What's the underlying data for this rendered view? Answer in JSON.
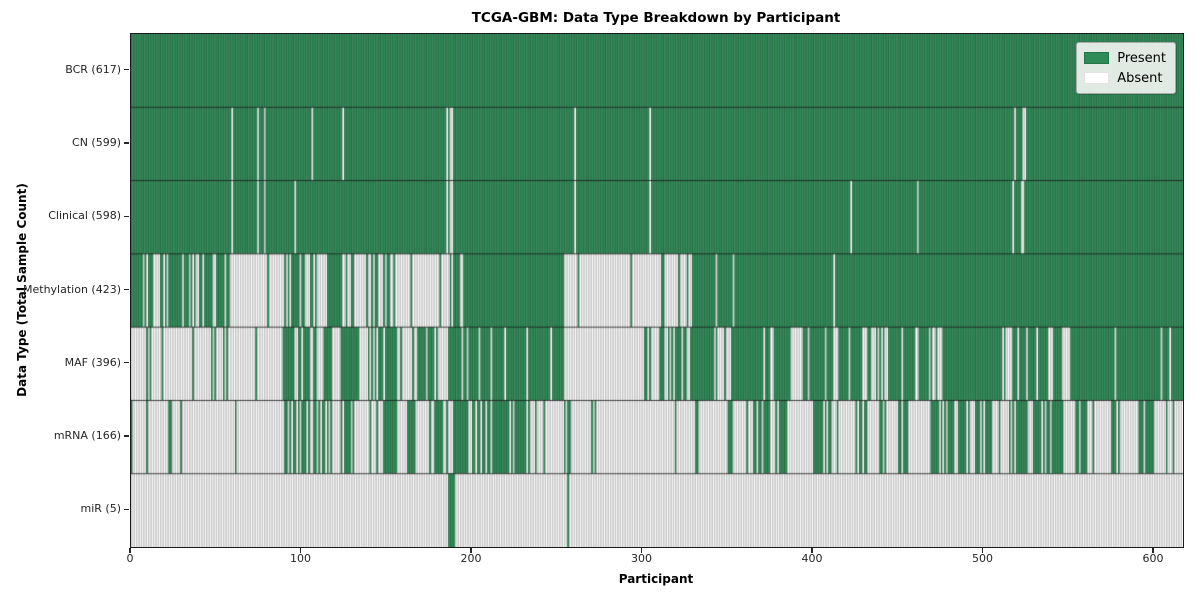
{
  "title": "TCGA-GBM: Data Type Breakdown by Participant",
  "axes": {
    "x_label": "Participant",
    "y_label": "Data Type (Total Sample Count)",
    "x_ticks": [
      0,
      100,
      200,
      300,
      400,
      500,
      600
    ]
  },
  "legend": {
    "present_label": "Present",
    "absent_label": "Absent"
  },
  "colors": {
    "present": "#2e8b57",
    "present_edge": "#1d5c39",
    "absent": "#ffffff",
    "absent_edge": "#9c9c9c",
    "row_divider": "rgba(15,15,15,0.85)",
    "tick": "#262626"
  },
  "chart_data": {
    "type": "heatmap",
    "title": "TCGA-GBM: Data Type Breakdown by Participant",
    "xlabel": "Participant",
    "ylabel": "Data Type (Total Sample Count)",
    "x_range": [
      0,
      617
    ],
    "x_ticks": [
      0,
      100,
      200,
      300,
      400,
      500,
      600
    ],
    "legend": [
      "Present",
      "Absent"
    ],
    "legend_position": "upper right",
    "cell_states": {
      "present": 1,
      "absent": 0,
      "note": "segments are [startParticipant, endParticipant, fractionPresent]; fraction 1=solid present, 0=solid absent, intermediate=interleaved present/absent stripes as seen in figure"
    },
    "rows": [
      {
        "name": "BCR",
        "label": "BCR (617)",
        "total": 617,
        "segments": [
          [
            0,
            617,
            1
          ]
        ]
      },
      {
        "name": "CN",
        "label": "CN (599)",
        "total": 599,
        "segments": [
          [
            0,
            59,
            1
          ],
          [
            59,
            60,
            0
          ],
          [
            60,
            74,
            1
          ],
          [
            74,
            75,
            0
          ],
          [
            75,
            78,
            1
          ],
          [
            78,
            79,
            0
          ],
          [
            79,
            106,
            1
          ],
          [
            106,
            107,
            0
          ],
          [
            107,
            124,
            1
          ],
          [
            124,
            125,
            0
          ],
          [
            125,
            185,
            1
          ],
          [
            185,
            186,
            0
          ],
          [
            186,
            187,
            1
          ],
          [
            187,
            189,
            0
          ],
          [
            189,
            260,
            1
          ],
          [
            260,
            261,
            0
          ],
          [
            261,
            304,
            1
          ],
          [
            304,
            305,
            0
          ],
          [
            305,
            518,
            1
          ],
          [
            518,
            519,
            0
          ],
          [
            519,
            523,
            1
          ],
          [
            523,
            525,
            0
          ],
          [
            525,
            617,
            1
          ]
        ]
      },
      {
        "name": "Clinical",
        "label": "Clinical (598)",
        "total": 598,
        "segments": [
          [
            0,
            59,
            1
          ],
          [
            59,
            60,
            0
          ],
          [
            60,
            74,
            1
          ],
          [
            74,
            75,
            0
          ],
          [
            75,
            78,
            1
          ],
          [
            78,
            79,
            0
          ],
          [
            79,
            96,
            1
          ],
          [
            96,
            97,
            0
          ],
          [
            97,
            185,
            1
          ],
          [
            185,
            186,
            0
          ],
          [
            186,
            187,
            1
          ],
          [
            187,
            189,
            0
          ],
          [
            189,
            260,
            1
          ],
          [
            260,
            261,
            0
          ],
          [
            261,
            304,
            1
          ],
          [
            304,
            305,
            0
          ],
          [
            305,
            422,
            1
          ],
          [
            422,
            423,
            0
          ],
          [
            423,
            461,
            1
          ],
          [
            461,
            462,
            0
          ],
          [
            462,
            517,
            1
          ],
          [
            517,
            518,
            0
          ],
          [
            518,
            522,
            1
          ],
          [
            522,
            524,
            0
          ],
          [
            524,
            617,
            1
          ]
        ]
      },
      {
        "name": "Methylation",
        "label": "Methylation (423)",
        "total": 423,
        "segments": [
          [
            0,
            7,
            1
          ],
          [
            7,
            22,
            0.5
          ],
          [
            22,
            31,
            0.9
          ],
          [
            31,
            45,
            0.4
          ],
          [
            45,
            59,
            0.75
          ],
          [
            59,
            89,
            0.15
          ],
          [
            89,
            102,
            0.7
          ],
          [
            102,
            115,
            0.3
          ],
          [
            115,
            125,
            0.9
          ],
          [
            125,
            158,
            0.35
          ],
          [
            158,
            186,
            0.15
          ],
          [
            186,
            197,
            0.5
          ],
          [
            197,
            254,
            1
          ],
          [
            254,
            311,
            0.04
          ],
          [
            311,
            330,
            0.2
          ],
          [
            330,
            412,
            0.98
          ],
          [
            412,
            413,
            0
          ],
          [
            413,
            617,
            0.99
          ]
        ]
      },
      {
        "name": "MAF",
        "label": "MAF (396)",
        "total": 396,
        "segments": [
          [
            0,
            88,
            0.1
          ],
          [
            88,
            104,
            0.6
          ],
          [
            104,
            115,
            0.4
          ],
          [
            115,
            133,
            0.75
          ],
          [
            133,
            146,
            0.5
          ],
          [
            146,
            156,
            0.95
          ],
          [
            156,
            168,
            0.25
          ],
          [
            168,
            180,
            0.85
          ],
          [
            180,
            186,
            0.1
          ],
          [
            186,
            215,
            0.8
          ],
          [
            215,
            254,
            0.95
          ],
          [
            254,
            300,
            0.05
          ],
          [
            300,
            311,
            0.3
          ],
          [
            311,
            328,
            0.5
          ],
          [
            328,
            342,
            0.95
          ],
          [
            342,
            352,
            0.3
          ],
          [
            352,
            371,
            0.95
          ],
          [
            371,
            372,
            0
          ],
          [
            372,
            387,
            0.95
          ],
          [
            387,
            398,
            0.4
          ],
          [
            398,
            407,
            0.95
          ],
          [
            407,
            415,
            0.5
          ],
          [
            415,
            426,
            0.95
          ],
          [
            426,
            444,
            0.3
          ],
          [
            444,
            471,
            0.95
          ],
          [
            471,
            476,
            0.2
          ],
          [
            476,
            511,
            0.97
          ],
          [
            511,
            522,
            0.5
          ],
          [
            522,
            538,
            0.95
          ],
          [
            538,
            541,
            0.2
          ],
          [
            541,
            546,
            0.95
          ],
          [
            546,
            551,
            0.2
          ],
          [
            551,
            617,
            0.98
          ]
        ]
      },
      {
        "name": "mRNA",
        "label": "mRNA (166)",
        "total": 166,
        "segments": [
          [
            0,
            22,
            0.05
          ],
          [
            22,
            24,
            1
          ],
          [
            24,
            29,
            0
          ],
          [
            29,
            30,
            1
          ],
          [
            30,
            90,
            0.02
          ],
          [
            90,
            111,
            0.5
          ],
          [
            111,
            123,
            0.15
          ],
          [
            123,
            129,
            0.9
          ],
          [
            129,
            148,
            0.35
          ],
          [
            148,
            156,
            0.9
          ],
          [
            156,
            162,
            0.1
          ],
          [
            162,
            168,
            0.9
          ],
          [
            168,
            178,
            0.1
          ],
          [
            178,
            184,
            0.8
          ],
          [
            184,
            189,
            0.1
          ],
          [
            189,
            197,
            0.95
          ],
          [
            197,
            203,
            0.3
          ],
          [
            203,
            213,
            0.5
          ],
          [
            213,
            221,
            0.9
          ],
          [
            221,
            238,
            0.7
          ],
          [
            238,
            256,
            0.05
          ],
          [
            256,
            258,
            0.9
          ],
          [
            258,
            331,
            0.02
          ],
          [
            331,
            333,
            1
          ],
          [
            333,
            350,
            0.03
          ],
          [
            350,
            353,
            0.8
          ],
          [
            353,
            361,
            0.05
          ],
          [
            361,
            375,
            0.7
          ],
          [
            375,
            380,
            0.05
          ],
          [
            380,
            385,
            0.8
          ],
          [
            385,
            401,
            0.1
          ],
          [
            401,
            411,
            0.6
          ],
          [
            411,
            428,
            0.1
          ],
          [
            428,
            432,
            0.8
          ],
          [
            432,
            439,
            0.1
          ],
          [
            439,
            444,
            0.8
          ],
          [
            444,
            450,
            0.1
          ],
          [
            450,
            456,
            0.8
          ],
          [
            456,
            470,
            0.15
          ],
          [
            470,
            490,
            0.75
          ],
          [
            490,
            495,
            0.2
          ],
          [
            495,
            505,
            0.7
          ],
          [
            505,
            520,
            0.25
          ],
          [
            520,
            545,
            0.7
          ],
          [
            545,
            555,
            0.2
          ],
          [
            555,
            565,
            0.6
          ],
          [
            565,
            575,
            0.15
          ],
          [
            575,
            580,
            0.7
          ],
          [
            580,
            590,
            0.1
          ],
          [
            590,
            600,
            0.8
          ],
          [
            600,
            617,
            0.05
          ]
        ]
      },
      {
        "name": "miR",
        "label": "miR (5)",
        "total": 5,
        "segments": [
          [
            0,
            186,
            0
          ],
          [
            186,
            190,
            1
          ],
          [
            190,
            256,
            0
          ],
          [
            256,
            257,
            1
          ],
          [
            257,
            617,
            0
          ]
        ]
      }
    ]
  }
}
